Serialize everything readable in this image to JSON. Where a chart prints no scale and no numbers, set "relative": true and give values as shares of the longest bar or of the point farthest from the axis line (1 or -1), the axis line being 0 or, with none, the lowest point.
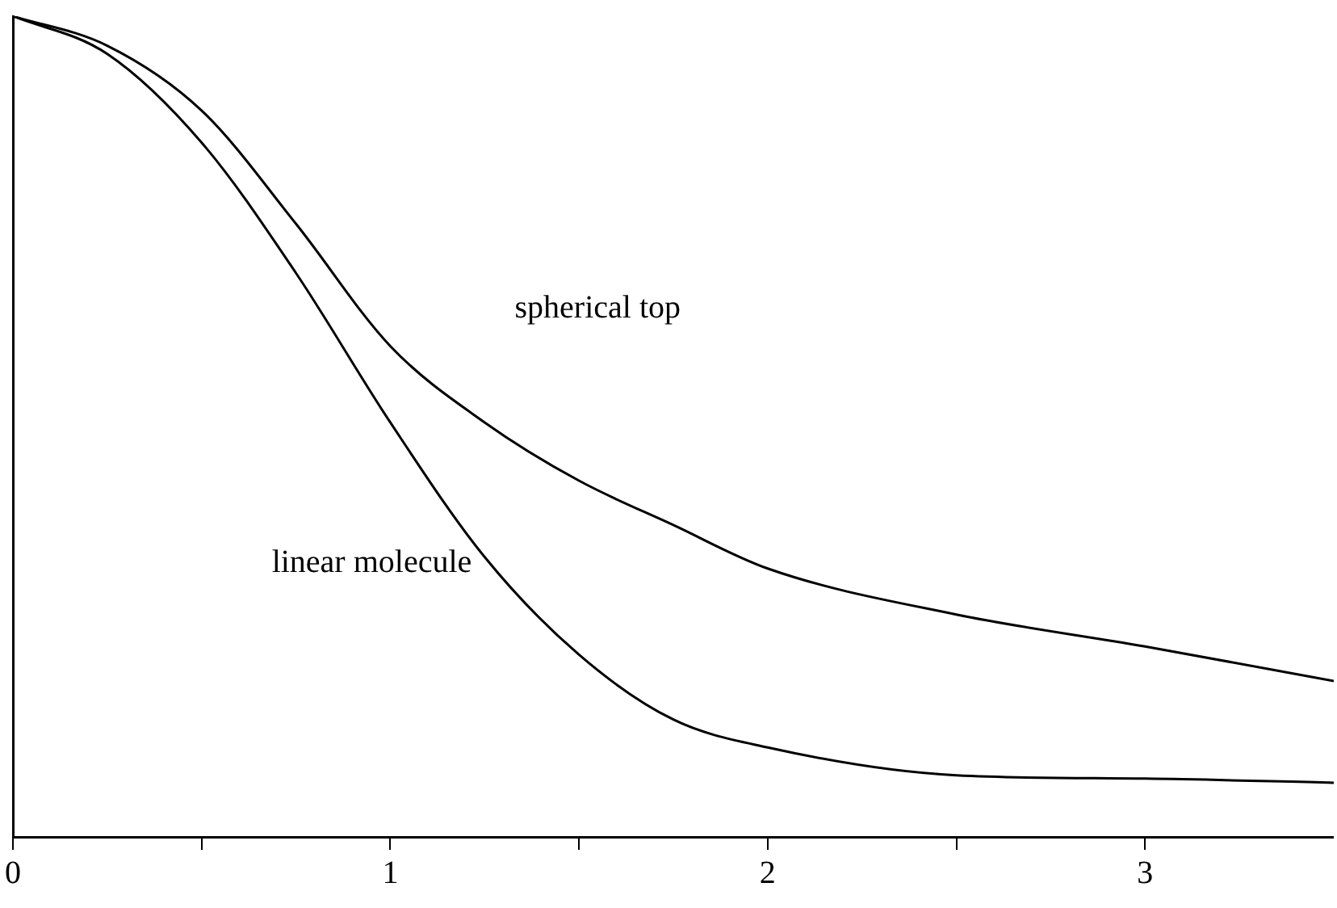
{
  "chart_data": {
    "type": "line",
    "relative": true,
    "x": [
      0,
      0.25,
      0.5,
      0.75,
      1,
      1.25,
      1.5,
      1.75,
      2,
      2.5,
      3,
      3.5
    ],
    "series": [
      {
        "name": "spherical top",
        "color": "#000000",
        "values": [
          1,
          0.964,
          0.885,
          0.747,
          0.598,
          0.505,
          0.434,
          0.38,
          0.327,
          0.271,
          0.232,
          0.19
        ]
      },
      {
        "name": "linear molecule",
        "color": "#000000",
        "values": [
          1,
          0.954,
          0.846,
          0.687,
          0.505,
          0.341,
          0.222,
          0.143,
          0.109,
          0.075,
          0.071,
          0.066
        ]
      }
    ],
    "xlim": [
      0,
      3.5
    ],
    "xticks": [
      0,
      {
        "value": 0.5,
        "label": null
      },
      1,
      {
        "value": 1.5,
        "label": null
      },
      2,
      {
        "value": 2.5,
        "label": null
      },
      3
    ],
    "grid": false,
    "legend": false,
    "marker": "none",
    "line_style": "solid"
  }
}
